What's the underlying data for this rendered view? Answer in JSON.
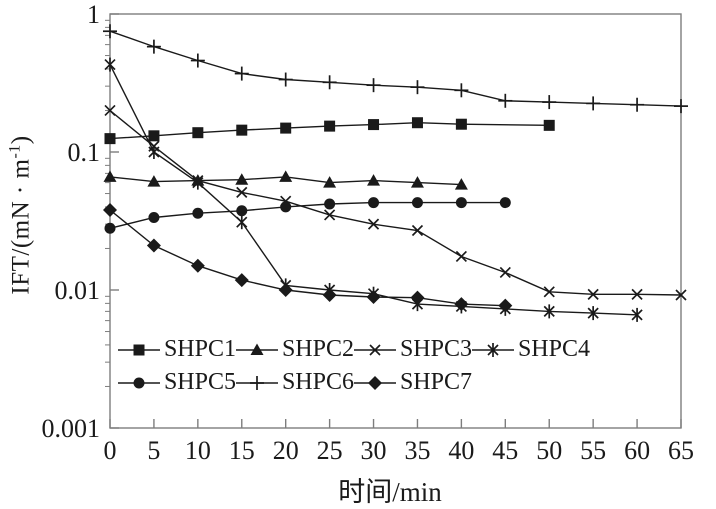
{
  "figure": {
    "background": "#ffffff",
    "ink_color": "#1a1a1a",
    "frame_color": "#7d7d7d"
  },
  "chart_data": {
    "type": "line",
    "title": "",
    "xlabel": "时间/min",
    "ylabel": "IFT/(mN · m-1)",
    "ylabel_parts": {
      "prefix": "IFT/(mN · m",
      "sup": "-1",
      "suffix": ")"
    },
    "y_scale": "log",
    "xlim": [
      0,
      65
    ],
    "ylim": [
      0.001,
      1
    ],
    "grid": false,
    "legend_position": "inside-bottom-left",
    "x_ticks": [
      0,
      5,
      10,
      15,
      20,
      25,
      30,
      35,
      40,
      45,
      50,
      55,
      60,
      65
    ],
    "x_tick_labels": [
      "0",
      "5",
      "10",
      "15",
      "20",
      "25",
      "30",
      "35",
      "40",
      "45",
      "50",
      "55",
      "60",
      "65"
    ],
    "y_ticks": [
      1,
      0.1,
      0.01,
      0.001
    ],
    "y_tick_labels": [
      "1",
      "0.1",
      "0.01",
      "0.001"
    ],
    "series": [
      {
        "name": "SHPC1",
        "marker": "square",
        "x": [
          0,
          5,
          10,
          15,
          20,
          25,
          30,
          35,
          40,
          50
        ],
        "y": [
          0.125,
          0.131,
          0.138,
          0.144,
          0.149,
          0.154,
          0.158,
          0.163,
          0.159,
          0.156
        ]
      },
      {
        "name": "SHPC2",
        "marker": "triangle",
        "x": [
          0,
          5,
          10,
          15,
          20,
          25,
          30,
          35,
          40
        ],
        "y": [
          0.066,
          0.061,
          0.062,
          0.063,
          0.066,
          0.06,
          0.062,
          0.06,
          0.058
        ]
      },
      {
        "name": "SHPC3",
        "marker": "x",
        "x": [
          0,
          5,
          10,
          15,
          20,
          25,
          30,
          35,
          40,
          45,
          50,
          55,
          60,
          65
        ],
        "y": [
          0.2,
          0.11,
          0.062,
          0.051,
          0.044,
          0.035,
          0.03,
          0.027,
          0.0175,
          0.0134,
          0.0097,
          0.0093,
          0.0093,
          0.0092
        ]
      },
      {
        "name": "SHPC4",
        "marker": "asterisk",
        "x": [
          0,
          5,
          10,
          15,
          20,
          25,
          30,
          35,
          40,
          45,
          50,
          55,
          60
        ],
        "y": [
          0.43,
          0.1,
          0.06,
          0.031,
          0.0108,
          0.01,
          0.0094,
          0.0079,
          0.0076,
          0.0073,
          0.007,
          0.0068,
          0.0066
        ]
      },
      {
        "name": "SHPC5",
        "marker": "circle",
        "x": [
          0,
          5,
          10,
          15,
          20,
          25,
          30,
          35,
          40,
          45
        ],
        "y": [
          0.028,
          0.0335,
          0.036,
          0.0375,
          0.04,
          0.042,
          0.043,
          0.043,
          0.043,
          0.043
        ]
      },
      {
        "name": "SHPC6",
        "marker": "plus",
        "x": [
          0,
          5,
          10,
          15,
          20,
          25,
          30,
          35,
          40,
          45,
          50,
          55,
          60,
          65
        ],
        "y": [
          0.75,
          0.58,
          0.46,
          0.37,
          0.335,
          0.32,
          0.305,
          0.295,
          0.28,
          0.235,
          0.23,
          0.225,
          0.22,
          0.215
        ]
      },
      {
        "name": "SHPC7",
        "marker": "diamond",
        "x": [
          0,
          5,
          10,
          15,
          20,
          25,
          30,
          35,
          40,
          45
        ],
        "y": [
          0.038,
          0.021,
          0.015,
          0.0118,
          0.01,
          0.0092,
          0.0089,
          0.0088,
          0.0079,
          0.0077
        ]
      }
    ],
    "legend_rows": [
      [
        "SHPC1",
        "SHPC2",
        "SHPC3",
        "SHPC4"
      ],
      [
        "SHPC5",
        "SHPC6",
        "SHPC7"
      ]
    ]
  }
}
